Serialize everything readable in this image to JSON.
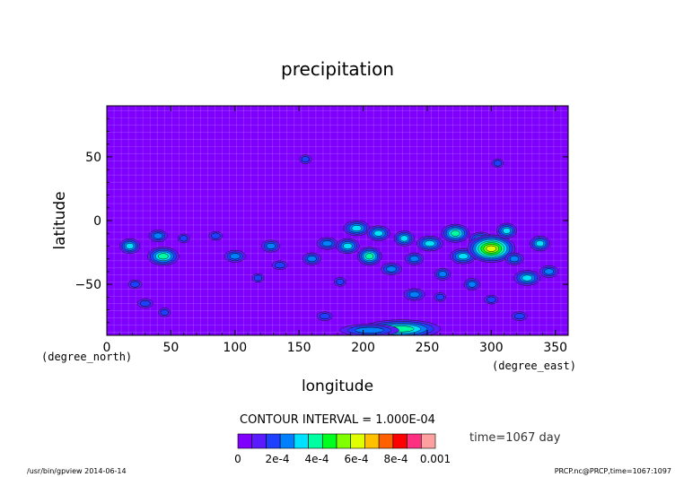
{
  "chart_data": {
    "type": "heatmap",
    "title": "precipitation",
    "xlabel": "longitude",
    "ylabel": "latitude",
    "x_unit": "(degree_east)",
    "y_unit": "(degree_north)",
    "xlim": [
      0,
      360
    ],
    "ylim": [
      -90,
      90
    ],
    "x_ticks": [
      "0",
      "50",
      "100",
      "150",
      "200",
      "250",
      "300",
      "350"
    ],
    "y_ticks": [
      "50",
      "0",
      "−50"
    ],
    "contour_interval_label": "CONTOUR INTERVAL = 1.000E-04",
    "time_label": "time=1067 day",
    "colorbar": {
      "labels": [
        "0",
        "2e-4",
        "4e-4",
        "6e-4",
        "8e-4",
        "0.001"
      ],
      "colors": [
        "#7f00ff",
        "#5a1cff",
        "#2040ff",
        "#0080ff",
        "#00e0ff",
        "#00ffa0",
        "#00ff20",
        "#80ff00",
        "#e0ff00",
        "#ffc000",
        "#ff6000",
        "#ff0000",
        "#ff3080",
        "#ffa0a0"
      ]
    },
    "background_color": "#7f00ff",
    "blobs": [
      {
        "lon": 18,
        "lat": -20,
        "level": 4
      },
      {
        "lon": 40,
        "lat": -12,
        "level": 3
      },
      {
        "lon": 44,
        "lat": -28,
        "level": 5
      },
      {
        "lon": 60,
        "lat": -14,
        "level": 2
      },
      {
        "lon": 22,
        "lat": -50,
        "level": 2
      },
      {
        "lon": 30,
        "lat": -65,
        "level": 2
      },
      {
        "lon": 45,
        "lat": -72,
        "level": 2
      },
      {
        "lon": 85,
        "lat": -12,
        "level": 2
      },
      {
        "lon": 100,
        "lat": -28,
        "level": 3
      },
      {
        "lon": 118,
        "lat": -45,
        "level": 2
      },
      {
        "lon": 128,
        "lat": -20,
        "level": 3
      },
      {
        "lon": 135,
        "lat": -35,
        "level": 2
      },
      {
        "lon": 155,
        "lat": 48,
        "level": 2
      },
      {
        "lon": 160,
        "lat": -30,
        "level": 3
      },
      {
        "lon": 172,
        "lat": -18,
        "level": 3
      },
      {
        "lon": 182,
        "lat": -48,
        "level": 2
      },
      {
        "lon": 188,
        "lat": -20,
        "level": 4
      },
      {
        "lon": 195,
        "lat": -6,
        "level": 4
      },
      {
        "lon": 205,
        "lat": -28,
        "level": 5
      },
      {
        "lon": 212,
        "lat": -10,
        "level": 4
      },
      {
        "lon": 222,
        "lat": -38,
        "level": 3
      },
      {
        "lon": 232,
        "lat": -14,
        "level": 4
      },
      {
        "lon": 240,
        "lat": -30,
        "level": 3
      },
      {
        "lon": 252,
        "lat": -18,
        "level": 4
      },
      {
        "lon": 262,
        "lat": -42,
        "level": 3
      },
      {
        "lon": 272,
        "lat": -10,
        "level": 5
      },
      {
        "lon": 278,
        "lat": -28,
        "level": 4
      },
      {
        "lon": 285,
        "lat": -50,
        "level": 3
      },
      {
        "lon": 292,
        "lat": -15,
        "level": 4
      },
      {
        "lon": 300,
        "lat": -22,
        "level": 8
      },
      {
        "lon": 312,
        "lat": -8,
        "level": 4
      },
      {
        "lon": 318,
        "lat": -30,
        "level": 3
      },
      {
        "lon": 328,
        "lat": -45,
        "level": 4
      },
      {
        "lon": 338,
        "lat": -18,
        "level": 4
      },
      {
        "lon": 345,
        "lat": -40,
        "level": 3
      },
      {
        "lon": 240,
        "lat": -58,
        "level": 3
      },
      {
        "lon": 260,
        "lat": -60,
        "level": 2
      },
      {
        "lon": 300,
        "lat": -62,
        "level": 2
      },
      {
        "lon": 322,
        "lat": -75,
        "level": 2
      },
      {
        "lon": 230,
        "lat": -85,
        "level": 5
      },
      {
        "lon": 205,
        "lat": -86,
        "level": 3
      },
      {
        "lon": 170,
        "lat": -75,
        "level": 2
      },
      {
        "lon": 305,
        "lat": 45,
        "level": 2
      }
    ]
  },
  "footer": {
    "left": "/usr/bin/gpview  2014-06-14",
    "right": "PRCP.nc@PRCP,time=1067:1097"
  }
}
